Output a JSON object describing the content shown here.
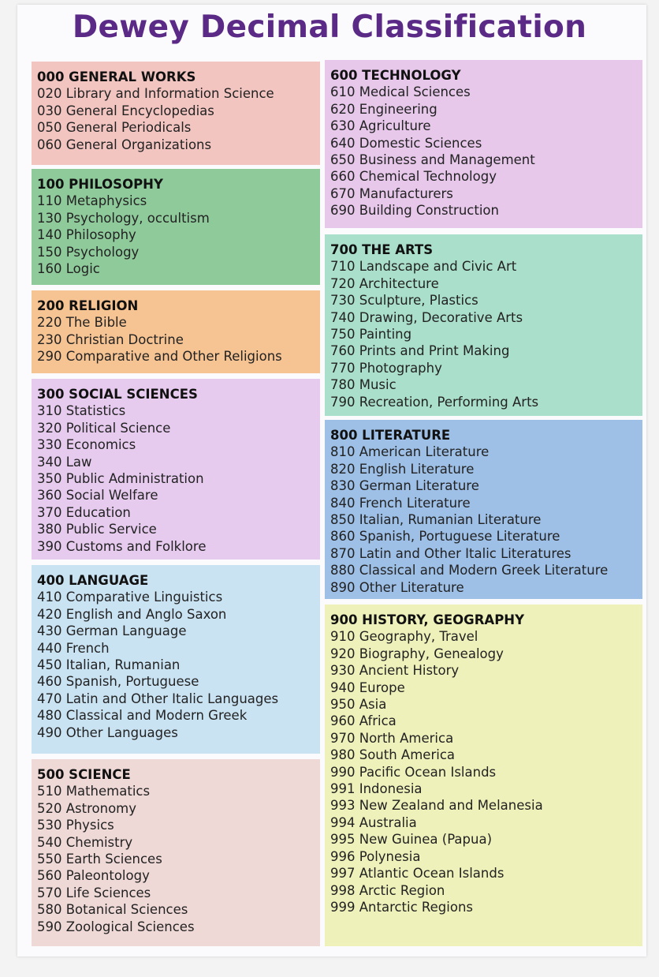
{
  "title": "Dewey Decimal Classification",
  "columns": [
    [
      {
        "heading": "000 GENERAL WORKS",
        "items": [
          "020 Library and Information Science",
          "030 General Encyclopedias",
          "050 General Periodicals",
          "060 General Organizations"
        ]
      },
      {
        "heading": "100 PHILOSOPHY",
        "items": [
          "110 Metaphysics",
          "130 Psychology, occultism",
          "140 Philosophy",
          "150 Psychology",
          "160 Logic"
        ]
      },
      {
        "heading": "200 RELIGION",
        "items": [
          "220 The Bible",
          "230 Christian Doctrine",
          "290 Comparative and Other Religions"
        ]
      },
      {
        "heading": "300 SOCIAL SCIENCES",
        "items": [
          "310 Statistics",
          "320 Political Science",
          "330 Economics",
          "340 Law",
          "350 Public Administration",
          "360 Social Welfare",
          "370 Education",
          "380 Public Service",
          "390 Customs and Folklore"
        ]
      },
      {
        "heading": "400 LANGUAGE",
        "items": [
          "410 Comparative Linguistics",
          "420 English and Anglo Saxon",
          "430 German Language",
          "440 French",
          "450 Italian, Rumanian",
          "460 Spanish, Portuguese",
          "470 Latin and Other Italic Languages",
          "480 Classical and Modern Greek",
          "490 Other Languages"
        ]
      },
      {
        "heading": "500 SCIENCE",
        "items": [
          "510 Mathematics",
          "520 Astronomy",
          "530 Physics",
          "540 Chemistry",
          "550 Earth Sciences",
          "560 Paleontology",
          "570 Life Sciences",
          "580 Botanical Sciences",
          "590 Zoological Sciences"
        ]
      }
    ],
    [
      {
        "heading": "600 TECHNOLOGY",
        "items": [
          "610 Medical Sciences",
          "620 Engineering",
          "630 Agriculture",
          "640 Domestic Sciences",
          "650 Business and Management",
          "660 Chemical Technology",
          "670 Manufacturers",
          "690 Building Construction"
        ]
      },
      {
        "heading": "700 THE ARTS",
        "items": [
          "710 Landscape and Civic Art",
          "720 Architecture",
          "730 Sculpture, Plastics",
          "740 Drawing, Decorative Arts",
          "750 Painting",
          "760 Prints and Print Making",
          "770 Photography",
          "780 Music",
          "790 Recreation, Performing Arts"
        ]
      },
      {
        "heading": "800 LITERATURE",
        "items": [
          "810 American Literature",
          "820 English Literature",
          "830 German Literature",
          "840 French Literature",
          "850 Italian, Rumanian Literature",
          "860 Spanish, Portuguese Literature",
          "870 Latin and Other Italic Literatures",
          "880 Classical and Modern Greek Literature",
          "890 Other Literature"
        ]
      },
      {
        "heading": "900 HISTORY, GEOGRAPHY",
        "items": [
          "910 Geography, Travel",
          "920 Biography, Genealogy",
          "930 Ancient History",
          "940 Europe",
          "950 Asia",
          "960 Africa",
          "970 North America",
          "980 South America",
          "990 Pacific Ocean Islands",
          "991 Indonesia",
          "993 New Zealand and Melanesia",
          "994 Australia",
          "995 New Guinea (Papua)",
          "996 Polynesia",
          "997 Atlantic Ocean Islands",
          "998 Arctic Region",
          "999 Antarctic Regions"
        ]
      }
    ]
  ]
}
